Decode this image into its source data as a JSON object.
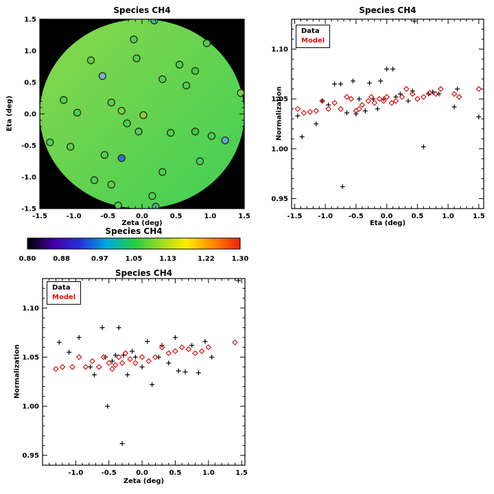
{
  "figure_title": "Species CH4",
  "colors": {
    "data_marker": "#000000",
    "model_marker": "#dd1111",
    "map_background": "#000000",
    "disk_green_light": "#8ad84b",
    "disk_green": "#3fce55"
  },
  "chart_data": [
    {
      "type": "heatmap",
      "id": "map",
      "title": "Species CH4",
      "xlabel": "Zeta (deg)",
      "ylabel": "Eta (deg)",
      "xlim": [
        -1.5,
        1.5
      ],
      "ylim": [
        -1.5,
        1.5
      ],
      "xticks": [
        -1.5,
        -1.0,
        -0.5,
        0.0,
        0.5,
        1.0,
        1.5
      ],
      "xticklabels": [
        "-1.5",
        "-1.0",
        "-0.5",
        "0.0",
        "0.5",
        "1.0",
        "1.5"
      ],
      "yticks": [
        -1.5,
        -1.0,
        -0.5,
        0.0,
        0.5,
        1.0,
        1.5
      ],
      "yticklabels": [
        "-1.5",
        "-1.0",
        "-0.5",
        "0.0",
        "0.5",
        "1.0",
        "1.5"
      ],
      "background": "#000000",
      "disk_gradient": [
        "#8ad84b",
        "#3fce55"
      ],
      "circle_stroke": "#2e3410",
      "points": [
        {
          "x": 0.18,
          "y": 1.48,
          "fill": "#3db89a"
        },
        {
          "x": -0.12,
          "y": 1.18,
          "fill": "#49cf58"
        },
        {
          "x": 0.95,
          "y": 1.12,
          "fill": "#49cf58"
        },
        {
          "x": -0.75,
          "y": 0.85,
          "fill": "#5ad04e"
        },
        {
          "x": -0.08,
          "y": 0.88,
          "fill": "#49cf58"
        },
        {
          "x": 0.55,
          "y": 0.78,
          "fill": "#49cf58"
        },
        {
          "x": 0.78,
          "y": 0.68,
          "fill": "#3ecb50"
        },
        {
          "x": -0.58,
          "y": 0.6,
          "fill": "#7aaede"
        },
        {
          "x": 0.3,
          "y": 0.55,
          "fill": "#49cf58"
        },
        {
          "x": 0.65,
          "y": 0.45,
          "fill": "#49cf58"
        },
        {
          "x": 1.45,
          "y": 0.33,
          "fill": "#7bcf4a"
        },
        {
          "x": -1.15,
          "y": 0.22,
          "fill": "#49cf58"
        },
        {
          "x": -0.45,
          "y": 0.18,
          "fill": "#5ad04e"
        },
        {
          "x": -0.95,
          "y": 0.02,
          "fill": "#49cf58"
        },
        {
          "x": -0.3,
          "y": 0.05,
          "fill": "#7bcf4a"
        },
        {
          "x": 0.02,
          "y": -0.02,
          "fill": "#8bc94a"
        },
        {
          "x": -0.22,
          "y": -0.15,
          "fill": "#49cf58"
        },
        {
          "x": -0.05,
          "y": -0.28,
          "fill": "#49cf58"
        },
        {
          "x": 0.42,
          "y": -0.3,
          "fill": "#49cf58"
        },
        {
          "x": 0.78,
          "y": -0.28,
          "fill": "#3ecb50"
        },
        {
          "x": 1.02,
          "y": -0.35,
          "fill": "#49cf58"
        },
        {
          "x": 1.22,
          "y": -0.42,
          "fill": "#63a7d8"
        },
        {
          "x": -1.35,
          "y": -0.45,
          "fill": "#49cf58"
        },
        {
          "x": -1.05,
          "y": -0.52,
          "fill": "#5ad04e"
        },
        {
          "x": -0.55,
          "y": -0.65,
          "fill": "#49cf58"
        },
        {
          "x": -0.3,
          "y": -0.7,
          "fill": "#3b6bd6"
        },
        {
          "x": 0.85,
          "y": -0.75,
          "fill": "#49cf58"
        },
        {
          "x": 0.3,
          "y": -0.92,
          "fill": "#49cf58"
        },
        {
          "x": -0.7,
          "y": -1.05,
          "fill": "#49cf58"
        },
        {
          "x": -0.45,
          "y": -1.12,
          "fill": "#5ad04e"
        },
        {
          "x": 0.15,
          "y": -1.3,
          "fill": "#49cf58"
        },
        {
          "x": -0.35,
          "y": -1.45,
          "fill": "#49cf58"
        },
        {
          "x": 0.2,
          "y": -1.47,
          "fill": "#3db89a"
        }
      ]
    },
    {
      "type": "scatter",
      "id": "eta",
      "title": "Species CH4",
      "xlabel": "Eta (deg)",
      "ylabel": "Normalization",
      "xlim": [
        -1.55,
        1.58
      ],
      "ylim": [
        0.94,
        1.13
      ],
      "xticks": [
        -1.5,
        -1.0,
        -0.5,
        0.0,
        0.5,
        1.0,
        1.5
      ],
      "xticklabels": [
        "-1.5",
        "-1.0",
        "-0.5",
        "0.0",
        "0.5",
        "1.0",
        "1.5"
      ],
      "yticks": [
        0.95,
        1.0,
        1.05,
        1.1
      ],
      "yticklabels": [
        "0.95",
        "1.00",
        "1.05",
        "1.10"
      ],
      "legend_position": "top-left",
      "series": [
        {
          "name": "Data",
          "marker": "plus",
          "color": "#000000",
          "points": [
            [
              -1.45,
              1.033
            ],
            [
              -1.38,
              1.012
            ],
            [
              -1.15,
              1.025
            ],
            [
              -1.05,
              1.048
            ],
            [
              -0.95,
              1.044
            ],
            [
              -0.85,
              1.065
            ],
            [
              -0.75,
              1.065
            ],
            [
              -0.72,
              0.962
            ],
            [
              -0.65,
              1.036
            ],
            [
              -0.55,
              1.068
            ],
            [
              -0.5,
              1.035
            ],
            [
              -0.45,
              1.05
            ],
            [
              -0.35,
              1.038
            ],
            [
              -0.28,
              1.066
            ],
            [
              -0.22,
              1.05
            ],
            [
              -0.15,
              1.04
            ],
            [
              -0.1,
              1.068
            ],
            [
              -0.05,
              1.05
            ],
            [
              0.0,
              1.08
            ],
            [
              0.1,
              1.08
            ],
            [
              0.15,
              1.052
            ],
            [
              0.22,
              1.055
            ],
            [
              0.35,
              1.048
            ],
            [
              0.42,
              1.058
            ],
            [
              0.45,
              1.128
            ],
            [
              0.6,
              1.002
            ],
            [
              0.68,
              1.055
            ],
            [
              0.75,
              1.057
            ],
            [
              0.85,
              1.055
            ],
            [
              1.1,
              1.042
            ],
            [
              1.15,
              1.06
            ],
            [
              1.5,
              1.032
            ]
          ]
        },
        {
          "name": "Model",
          "marker": "diamond",
          "color": "#dd1111",
          "points": [
            [
              -1.45,
              1.04
            ],
            [
              -1.35,
              1.036
            ],
            [
              -1.25,
              1.037
            ],
            [
              -1.15,
              1.038
            ],
            [
              -1.05,
              1.048
            ],
            [
              -0.95,
              1.04
            ],
            [
              -0.85,
              1.046
            ],
            [
              -0.75,
              1.04
            ],
            [
              -0.65,
              1.052
            ],
            [
              -0.58,
              1.05
            ],
            [
              -0.5,
              1.038
            ],
            [
              -0.45,
              1.04
            ],
            [
              -0.4,
              1.044
            ],
            [
              -0.3,
              1.048
            ],
            [
              -0.25,
              1.052
            ],
            [
              -0.2,
              1.046
            ],
            [
              -0.12,
              1.05
            ],
            [
              -0.05,
              1.048
            ],
            [
              0.0,
              1.052
            ],
            [
              0.08,
              1.046
            ],
            [
              0.15,
              1.048
            ],
            [
              0.25,
              1.052
            ],
            [
              0.32,
              1.06
            ],
            [
              0.42,
              1.055
            ],
            [
              0.5,
              1.05
            ],
            [
              0.6,
              1.052
            ],
            [
              0.7,
              1.056
            ],
            [
              0.8,
              1.055
            ],
            [
              0.88,
              1.06
            ],
            [
              1.1,
              1.055
            ],
            [
              1.18,
              1.052
            ],
            [
              1.5,
              1.06
            ]
          ]
        }
      ]
    },
    {
      "type": "colorbar",
      "id": "colorbar",
      "title": "Species CH4",
      "range": [
        0.8,
        1.3
      ],
      "ticks": [
        0.8,
        0.88,
        0.97,
        1.05,
        1.13,
        1.22,
        1.3
      ],
      "ticklabels": [
        "0.80",
        "0.88",
        "0.97",
        "1.05",
        "1.13",
        "1.22",
        "1.30"
      ],
      "colors": [
        "#000000",
        "#4400aa",
        "#2233dd",
        "#00aadd",
        "#22cc44",
        "#99dd22",
        "#ffee00",
        "#ff8800",
        "#ee2211"
      ]
    },
    {
      "type": "scatter",
      "id": "zeta",
      "title": "Species CH4",
      "xlabel": "Zeta (deg)",
      "ylabel": "Normalization",
      "xlim": [
        -1.5,
        1.55
      ],
      "ylim": [
        0.94,
        1.13
      ],
      "xticks": [
        -1.0,
        -0.5,
        0.0,
        0.5,
        1.0,
        1.5
      ],
      "xticklabels": [
        "-1.0",
        "-0.5",
        "0.0",
        "0.5",
        "1.0",
        "1.5"
      ],
      "yticks": [
        0.95,
        1.0,
        1.05,
        1.1
      ],
      "yticklabels": [
        "0.95",
        "1.00",
        "1.05",
        "1.10"
      ],
      "legend_position": "top-left",
      "series": [
        {
          "name": "Data",
          "marker": "plus",
          "color": "#000000",
          "points": [
            [
              -1.25,
              1.065
            ],
            [
              -1.1,
              1.055
            ],
            [
              -0.95,
              1.07
            ],
            [
              -0.78,
              1.04
            ],
            [
              -0.72,
              1.032
            ],
            [
              -0.6,
              1.08
            ],
            [
              -0.55,
              1.05
            ],
            [
              -0.52,
              1.0
            ],
            [
              -0.45,
              1.046
            ],
            [
              -0.4,
              1.052
            ],
            [
              -0.35,
              1.08
            ],
            [
              -0.3,
              0.962
            ],
            [
              -0.28,
              1.052
            ],
            [
              -0.22,
              1.032
            ],
            [
              -0.15,
              1.056
            ],
            [
              -0.1,
              1.05
            ],
            [
              0.0,
              1.04
            ],
            [
              0.08,
              1.066
            ],
            [
              0.15,
              1.022
            ],
            [
              0.25,
              1.05
            ],
            [
              0.3,
              1.062
            ],
            [
              0.4,
              1.044
            ],
            [
              0.5,
              1.07
            ],
            [
              0.55,
              1.036
            ],
            [
              0.65,
              1.035
            ],
            [
              0.75,
              1.062
            ],
            [
              0.85,
              1.034
            ],
            [
              0.95,
              1.066
            ],
            [
              1.05,
              1.05
            ],
            [
              1.45,
              1.128
            ]
          ]
        },
        {
          "name": "Model",
          "marker": "diamond",
          "color": "#dd1111",
          "points": [
            [
              -1.3,
              1.038
            ],
            [
              -1.2,
              1.04
            ],
            [
              -1.05,
              1.04
            ],
            [
              -0.95,
              1.05
            ],
            [
              -0.85,
              1.04
            ],
            [
              -0.75,
              1.046
            ],
            [
              -0.65,
              1.04
            ],
            [
              -0.58,
              1.05
            ],
            [
              -0.5,
              1.044
            ],
            [
              -0.45,
              1.038
            ],
            [
              -0.4,
              1.042
            ],
            [
              -0.35,
              1.05
            ],
            [
              -0.3,
              1.044
            ],
            [
              -0.25,
              1.054
            ],
            [
              -0.18,
              1.048
            ],
            [
              -0.1,
              1.044
            ],
            [
              0.0,
              1.05
            ],
            [
              0.1,
              1.046
            ],
            [
              0.2,
              1.05
            ],
            [
              0.3,
              1.06
            ],
            [
              0.4,
              1.054
            ],
            [
              0.5,
              1.056
            ],
            [
              0.6,
              1.06
            ],
            [
              0.7,
              1.058
            ],
            [
              0.8,
              1.054
            ],
            [
              0.9,
              1.056
            ],
            [
              1.0,
              1.06
            ],
            [
              1.4,
              1.065
            ]
          ]
        }
      ]
    }
  ]
}
